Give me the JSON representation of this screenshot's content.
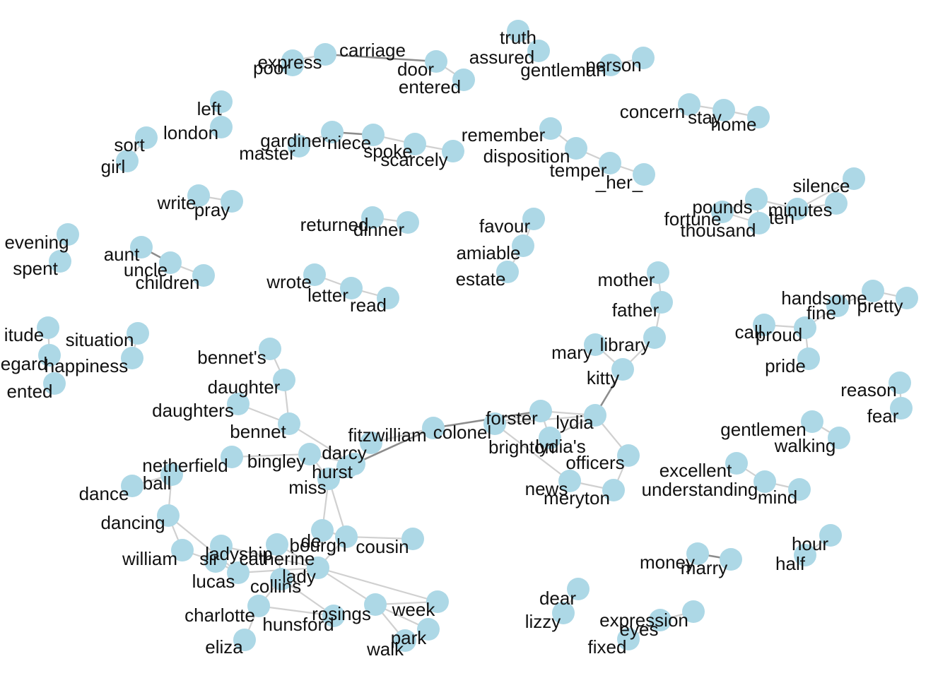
{
  "diagram": {
    "type": "network",
    "node_color": "#add8e6",
    "edge_color_light": "#d0d0d0",
    "edge_color_dark": "#8c8c8c",
    "nodes": [
      {
        "id": "truth"
      },
      {
        "id": "assured"
      },
      {
        "id": "gentleman"
      },
      {
        "id": "person"
      },
      {
        "id": "express"
      },
      {
        "id": "poor"
      },
      {
        "id": "carriage"
      },
      {
        "id": "door"
      },
      {
        "id": "entered"
      },
      {
        "id": "left"
      },
      {
        "id": "london"
      },
      {
        "id": "sort"
      },
      {
        "id": "girl"
      },
      {
        "id": "gardiner"
      },
      {
        "id": "master"
      },
      {
        "id": "niece"
      },
      {
        "id": "spoke"
      },
      {
        "id": "scarcely"
      },
      {
        "id": "remember"
      },
      {
        "id": "disposition"
      },
      {
        "id": "temper"
      },
      {
        "id": "_her_"
      },
      {
        "id": "concern"
      },
      {
        "id": "stay"
      },
      {
        "id": "home"
      },
      {
        "id": "silence"
      },
      {
        "id": "pounds"
      },
      {
        "id": "minutes"
      },
      {
        "id": "fortune"
      },
      {
        "id": "ten"
      },
      {
        "id": "thousand"
      },
      {
        "id": "write"
      },
      {
        "id": "pray"
      },
      {
        "id": "returned"
      },
      {
        "id": "dinner"
      },
      {
        "id": "favour"
      },
      {
        "id": "amiable"
      },
      {
        "id": "estate"
      },
      {
        "id": "evening"
      },
      {
        "id": "spent"
      },
      {
        "id": "aunt"
      },
      {
        "id": "uncle"
      },
      {
        "id": "children"
      },
      {
        "id": "wrote"
      },
      {
        "id": "letter"
      },
      {
        "id": "read"
      },
      {
        "id": "mother"
      },
      {
        "id": "father"
      },
      {
        "id": "library"
      },
      {
        "id": "mary"
      },
      {
        "id": "kitty"
      },
      {
        "id": "handsome"
      },
      {
        "id": "fine"
      },
      {
        "id": "pretty"
      },
      {
        "id": "call"
      },
      {
        "id": "proud"
      },
      {
        "id": "pride"
      },
      {
        "id": "reason"
      },
      {
        "id": "fear"
      },
      {
        "id": "itude"
      },
      {
        "id": "situation"
      },
      {
        "id": "egard"
      },
      {
        "id": "happiness"
      },
      {
        "id": "ented"
      },
      {
        "id": "bennet's"
      },
      {
        "id": "daughter"
      },
      {
        "id": "daughters"
      },
      {
        "id": "bennet"
      },
      {
        "id": "fitzwilliam"
      },
      {
        "id": "colonel"
      },
      {
        "id": "forster"
      },
      {
        "id": "lydia"
      },
      {
        "id": "brighton"
      },
      {
        "id": "lydia's"
      },
      {
        "id": "officers"
      },
      {
        "id": "news"
      },
      {
        "id": "meryton"
      },
      {
        "id": "gentlemen"
      },
      {
        "id": "walking"
      },
      {
        "id": "excellent"
      },
      {
        "id": "understanding"
      },
      {
        "id": "mind"
      },
      {
        "id": "netherfield"
      },
      {
        "id": "bingley"
      },
      {
        "id": "darcy"
      },
      {
        "id": "hurst"
      },
      {
        "id": "miss"
      },
      {
        "id": "ball"
      },
      {
        "id": "dance"
      },
      {
        "id": "dancing"
      },
      {
        "id": "william"
      },
      {
        "id": "ladyship"
      },
      {
        "id": "sir"
      },
      {
        "id": "catherine"
      },
      {
        "id": "lucas"
      },
      {
        "id": "de"
      },
      {
        "id": "bourgh"
      },
      {
        "id": "cousin"
      },
      {
        "id": "lady"
      },
      {
        "id": "collins"
      },
      {
        "id": "charlotte"
      },
      {
        "id": "hunsford"
      },
      {
        "id": "rosings"
      },
      {
        "id": "week"
      },
      {
        "id": "park"
      },
      {
        "id": "walk"
      },
      {
        "id": "eliza"
      },
      {
        "id": "hour"
      },
      {
        "id": "half"
      },
      {
        "id": "money"
      },
      {
        "id": "marry"
      },
      {
        "id": "dear"
      },
      {
        "id": "lizzy"
      },
      {
        "id": "expression"
      },
      {
        "id": "eyes"
      },
      {
        "id": "fixed"
      }
    ],
    "edges": [
      [
        "truth",
        "assured",
        "light"
      ],
      [
        "gentleman",
        "person",
        "light"
      ],
      [
        "express",
        "poor",
        "light"
      ],
      [
        "express",
        "carriage",
        "light"
      ],
      [
        "carriage",
        "door",
        "dark"
      ],
      [
        "door",
        "entered",
        "light"
      ],
      [
        "left",
        "london",
        "light"
      ],
      [
        "sort",
        "girl",
        "light"
      ],
      [
        "gardiner",
        "master",
        "light"
      ],
      [
        "gardiner",
        "niece",
        "dark"
      ],
      [
        "niece",
        "spoke",
        "light"
      ],
      [
        "spoke",
        "scarcely",
        "light"
      ],
      [
        "remember",
        "disposition",
        "light"
      ],
      [
        "disposition",
        "temper",
        "light"
      ],
      [
        "temper",
        "_her_",
        "light"
      ],
      [
        "concern",
        "stay",
        "light"
      ],
      [
        "stay",
        "home",
        "light"
      ],
      [
        "pounds",
        "thousand",
        "light"
      ],
      [
        "pounds",
        "fortune",
        "light"
      ],
      [
        "pounds",
        "minutes",
        "light"
      ],
      [
        "minutes",
        "silence",
        "light"
      ],
      [
        "minutes",
        "ten",
        "light"
      ],
      [
        "fortune",
        "thousand",
        "light"
      ],
      [
        "write",
        "pray",
        "light"
      ],
      [
        "returned",
        "dinner",
        "light"
      ],
      [
        "favour",
        "amiable",
        "light"
      ],
      [
        "amiable",
        "estate",
        "light"
      ],
      [
        "evening",
        "spent",
        "light"
      ],
      [
        "aunt",
        "uncle",
        "dark"
      ],
      [
        "uncle",
        "children",
        "light"
      ],
      [
        "wrote",
        "letter",
        "light"
      ],
      [
        "letter",
        "read",
        "light"
      ],
      [
        "mother",
        "father",
        "light"
      ],
      [
        "father",
        "library",
        "light"
      ],
      [
        "library",
        "kitty",
        "light"
      ],
      [
        "mary",
        "kitty",
        "light"
      ],
      [
        "kitty",
        "lydia",
        "dark"
      ],
      [
        "handsome",
        "pretty",
        "light"
      ],
      [
        "handsome",
        "fine",
        "light"
      ],
      [
        "fine",
        "proud",
        "light"
      ],
      [
        "call",
        "proud",
        "light"
      ],
      [
        "proud",
        "pride",
        "light"
      ],
      [
        "reason",
        "fear",
        "light"
      ],
      [
        "situation",
        "happiness",
        "light"
      ],
      [
        "itude",
        "egard",
        "light"
      ],
      [
        "egard",
        "ented",
        "light"
      ],
      [
        "bennet's",
        "daughter",
        "light"
      ],
      [
        "daughter",
        "bennet",
        "light"
      ],
      [
        "daughters",
        "bennet",
        "light"
      ],
      [
        "bennet",
        "darcy",
        "light"
      ],
      [
        "fitzwilliam",
        "colonel",
        "light"
      ],
      [
        "colonel",
        "forster",
        "dark"
      ],
      [
        "colonel",
        "darcy",
        "dark"
      ],
      [
        "forster",
        "lydia",
        "light"
      ],
      [
        "forster",
        "brighton",
        "light"
      ],
      [
        "forster",
        "lydia's",
        "light"
      ],
      [
        "lydia",
        "lydia's",
        "light"
      ],
      [
        "lydia",
        "officers",
        "light"
      ],
      [
        "lydia",
        "brighton",
        "light"
      ],
      [
        "brighton",
        "news",
        "light"
      ],
      [
        "officers",
        "meryton",
        "light"
      ],
      [
        "news",
        "meryton",
        "light"
      ],
      [
        "gentlemen",
        "walking",
        "light"
      ],
      [
        "excellent",
        "understanding",
        "light"
      ],
      [
        "understanding",
        "mind",
        "light"
      ],
      [
        "netherfield",
        "bingley",
        "light"
      ],
      [
        "bingley",
        "darcy",
        "light"
      ],
      [
        "bingley",
        "miss",
        "light"
      ],
      [
        "darcy",
        "hurst",
        "dark"
      ],
      [
        "hurst",
        "miss",
        "light"
      ],
      [
        "miss",
        "de",
        "light"
      ],
      [
        "miss",
        "bourgh",
        "light"
      ],
      [
        "ball",
        "dance",
        "light"
      ],
      [
        "ball",
        "dancing",
        "light"
      ],
      [
        "dancing",
        "william",
        "light"
      ],
      [
        "dancing",
        "lucas",
        "light"
      ],
      [
        "william",
        "sir",
        "light"
      ],
      [
        "sir",
        "lucas",
        "light"
      ],
      [
        "sir",
        "ladyship",
        "light"
      ],
      [
        "ladyship",
        "lady",
        "light"
      ],
      [
        "lucas",
        "lady",
        "light"
      ],
      [
        "de",
        "bourgh",
        "light"
      ],
      [
        "bourgh",
        "cousin",
        "light"
      ],
      [
        "bourgh",
        "lady",
        "light"
      ],
      [
        "lady",
        "catherine",
        "light"
      ],
      [
        "lady",
        "collins",
        "light"
      ],
      [
        "lady",
        "rosings",
        "light"
      ],
      [
        "lady",
        "week",
        "light"
      ],
      [
        "catherine",
        "collins",
        "light"
      ],
      [
        "collins",
        "charlotte",
        "light"
      ],
      [
        "charlotte",
        "eliza",
        "light"
      ],
      [
        "charlotte",
        "hunsford",
        "light"
      ],
      [
        "collins",
        "hunsford",
        "light"
      ],
      [
        "rosings",
        "park",
        "light"
      ],
      [
        "rosings",
        "walk",
        "light"
      ],
      [
        "rosings",
        "week",
        "light"
      ],
      [
        "park",
        "walk",
        "light"
      ],
      [
        "hour",
        "half",
        "light"
      ],
      [
        "money",
        "marry",
        "dark"
      ],
      [
        "dear",
        "lizzy",
        "light"
      ],
      [
        "expression",
        "eyes",
        "light"
      ],
      [
        "eyes",
        "fixed",
        "light"
      ]
    ]
  }
}
